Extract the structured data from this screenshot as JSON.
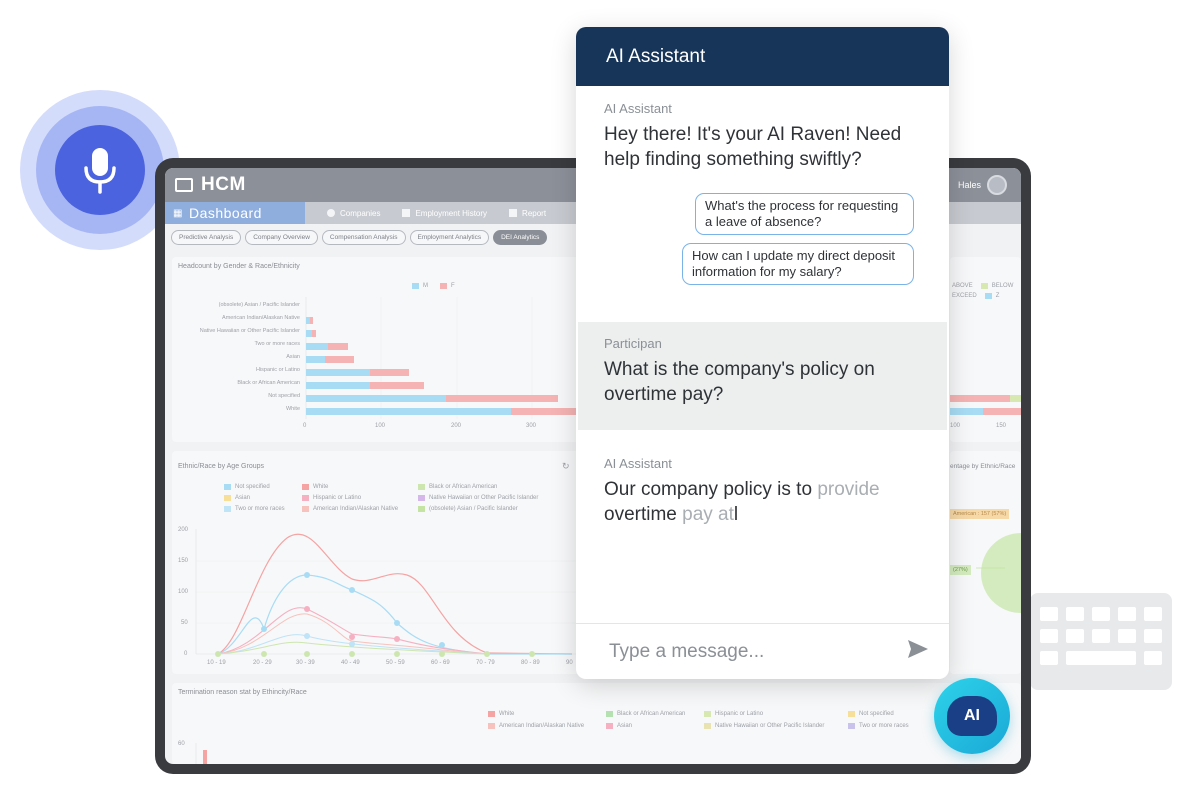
{
  "app": {
    "name": "HCM",
    "user": "Hales"
  },
  "nav": {
    "dashboard": "Dashboard",
    "items": [
      "Companies",
      "Employment History",
      "Report"
    ]
  },
  "tabs": [
    "Predictive Analysis",
    "Company Overview",
    "Compensation Analysis",
    "Employment Analytics",
    "DEI Analytics"
  ],
  "headcount": {
    "title": "Headcount by Gender & Race/Ethnicity",
    "legend": [
      "M",
      "F"
    ],
    "categories": [
      "(obsolete) Asian / Pacific Islander",
      "American Indian/Alaskan Native",
      "Native Hawaiian or Other Pacific Islander",
      "Two or more races",
      "Asian",
      "Hispanic or Latino",
      "Black or African American",
      "Not specified",
      "White"
    ],
    "x_ticks": [
      "0",
      "100",
      "200",
      "300"
    ],
    "colors": {
      "M": "#a8dcf5",
      "F": "#f5b3b3"
    }
  },
  "right_panel": {
    "legend": [
      "ABOVE",
      "BELOW",
      "EXCEED",
      "Z"
    ],
    "x_ticks": [
      "100",
      "150"
    ],
    "label1": "American : 157 (57%)",
    "label2": "(27%)",
    "title_partial": "entage by Ethnic/Race"
  },
  "age_groups": {
    "title": "Ethnic/Race by Age Groups",
    "legend": [
      "Not specified",
      "White",
      "Black or African American",
      "Asian",
      "Hispanic or Latino",
      "Native Hawaiian or Other Pacific Islander",
      "Two or more races",
      "American Indian/Alaskan Native",
      "(obsolete) Asian / Pacific Islander"
    ],
    "y_ticks": [
      "200",
      "150",
      "100",
      "50",
      "0"
    ],
    "x_ticks": [
      "10 - 19",
      "20 - 29",
      "30 - 39",
      "40 - 49",
      "50 - 59",
      "60 - 69",
      "70 - 79",
      "80 - 89",
      "90"
    ]
  },
  "termination": {
    "title": "Termination reason stat by Ethincity/Race",
    "legend": [
      "White",
      "Black or African American",
      "Hispanic or Latino",
      "Not specified",
      "American Indian/Alaskan Native",
      "Asian",
      "Native Hawaiian or Other Pacific Islander",
      "Two or more races"
    ],
    "y_tick": "60"
  },
  "chat": {
    "header": "AI Assistant",
    "ai_label": "AI Assistant",
    "greeting": "Hey there! It's your AI Raven! Need help finding something swiftly?",
    "suggestion1": "What's the process for requesting a leave of absence?",
    "suggestion2": "How can I update my direct deposit information for my salary?",
    "user_label": "Participan",
    "user_message": "What is the company's policy on overtime pay?",
    "reply_solid": "Our company policy is to ",
    "reply_faded_1": "provide",
    "reply_solid_2": "overtime ",
    "reply_faded_2": "pay at",
    "reply_cursor": "l",
    "input_placeholder": "Type a message...",
    "send_icon": "send-icon"
  },
  "badge": {
    "label": "AI"
  },
  "colors": {
    "chat_header": "#173459",
    "mic": "#4c63df",
    "badge": "#22bfe0",
    "suggestion_border": "#7ab3e8"
  }
}
